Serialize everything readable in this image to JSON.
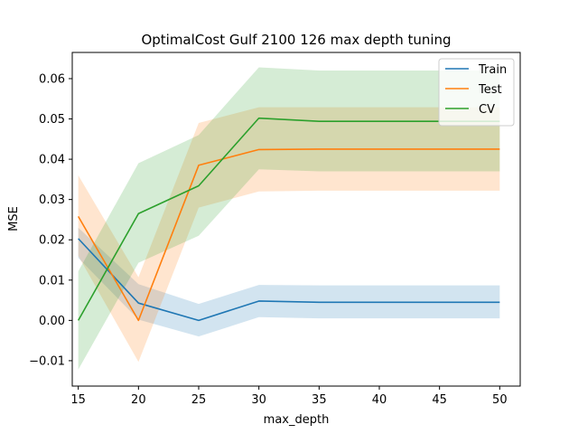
{
  "chart_data": {
    "type": "line",
    "title": "OptimalCost Gulf 2100 126 max depth tuning",
    "xlabel": "max_depth",
    "ylabel": "MSE",
    "x": [
      15,
      20,
      25,
      30,
      35,
      50
    ],
    "xlim": [
      14.5,
      51.7
    ],
    "ylim": [
      -0.0163,
      0.0665
    ],
    "xticks": [
      15,
      20,
      25,
      30,
      35,
      40,
      45,
      50
    ],
    "yticks": [
      -0.01,
      0.0,
      0.01,
      0.02,
      0.03,
      0.04,
      0.05,
      0.06
    ],
    "ytick_labels": [
      "−0.01",
      "0.00",
      "0.01",
      "0.02",
      "0.03",
      "0.04",
      "0.05",
      "0.06"
    ],
    "grid": false,
    "legend_position": "top-right",
    "series": [
      {
        "name": "Train",
        "color": "#1f77b4",
        "values": [
          0.0203,
          0.0043,
          0.0,
          0.0048,
          0.0045,
          0.0045
        ],
        "lower": [
          0.0155,
          0.0002,
          -0.004,
          0.0008,
          0.0005,
          0.0005
        ],
        "upper": [
          0.023,
          0.009,
          0.0041,
          0.0088,
          0.0087,
          0.0087
        ]
      },
      {
        "name": "Test",
        "color": "#ff7f0e",
        "values": [
          0.0258,
          0.0,
          0.0385,
          0.0424,
          0.0425,
          0.0425
        ],
        "lower": [
          0.016,
          -0.0103,
          0.028,
          0.032,
          0.0322,
          0.0322
        ],
        "upper": [
          0.036,
          0.0107,
          0.049,
          0.0529,
          0.0529,
          0.0529
        ]
      },
      {
        "name": "CV",
        "color": "#2ca02c",
        "values": [
          0.0,
          0.0265,
          0.0334,
          0.0502,
          0.0494,
          0.0494
        ],
        "lower": [
          -0.0122,
          0.0143,
          0.021,
          0.0375,
          0.037,
          0.037
        ],
        "upper": [
          0.0122,
          0.039,
          0.046,
          0.0628,
          0.062,
          0.062
        ]
      }
    ]
  }
}
